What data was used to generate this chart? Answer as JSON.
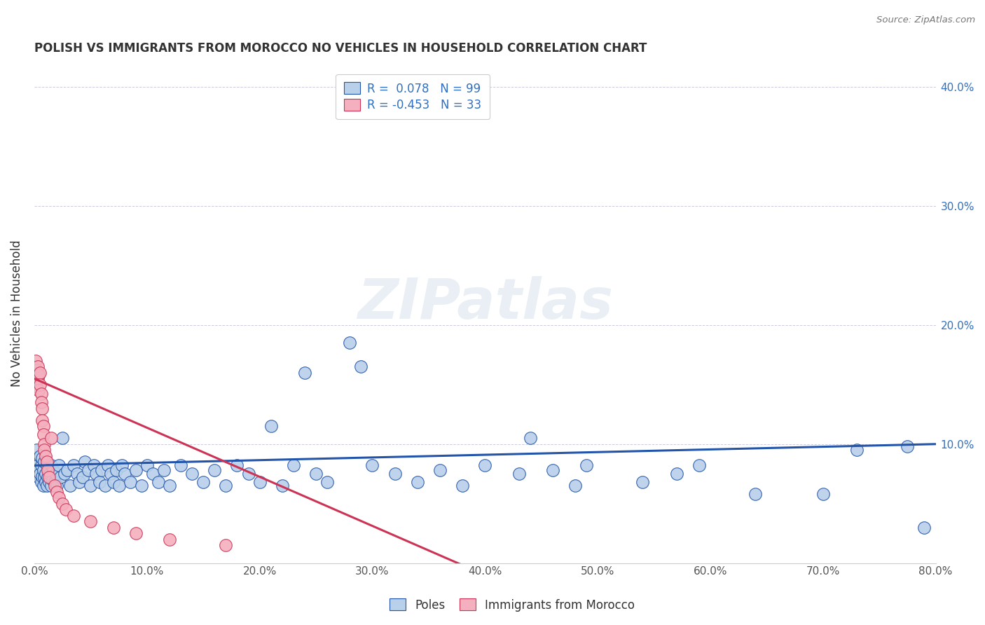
{
  "title": "POLISH VS IMMIGRANTS FROM MOROCCO NO VEHICLES IN HOUSEHOLD CORRELATION CHART",
  "source": "Source: ZipAtlas.com",
  "ylabel": "No Vehicles in Household",
  "legend_label1": "Poles",
  "legend_label2": "Immigrants from Morocco",
  "R1": 0.078,
  "N1": 99,
  "R2": -0.453,
  "N2": 33,
  "color_blue": "#b8d0ea",
  "color_pink": "#f5b0bf",
  "line_color_blue": "#2255aa",
  "line_color_pink": "#cc3355",
  "watermark": "ZIPatlas",
  "blue_dots": [
    [
      0.001,
      0.082
    ],
    [
      0.002,
      0.076
    ],
    [
      0.002,
      0.095
    ],
    [
      0.003,
      0.088
    ],
    [
      0.003,
      0.082
    ],
    [
      0.004,
      0.078
    ],
    [
      0.004,
      0.072
    ],
    [
      0.005,
      0.09
    ],
    [
      0.005,
      0.075
    ],
    [
      0.006,
      0.068
    ],
    [
      0.006,
      0.082
    ],
    [
      0.007,
      0.073
    ],
    [
      0.007,
      0.088
    ],
    [
      0.008,
      0.065
    ],
    [
      0.008,
      0.078
    ],
    [
      0.009,
      0.072
    ],
    [
      0.009,
      0.085
    ],
    [
      0.01,
      0.068
    ],
    [
      0.01,
      0.075
    ],
    [
      0.011,
      0.082
    ],
    [
      0.011,
      0.065
    ],
    [
      0.012,
      0.072
    ],
    [
      0.013,
      0.078
    ],
    [
      0.013,
      0.068
    ],
    [
      0.014,
      0.075
    ],
    [
      0.015,
      0.065
    ],
    [
      0.015,
      0.082
    ],
    [
      0.016,
      0.07
    ],
    [
      0.017,
      0.078
    ],
    [
      0.018,
      0.068
    ],
    [
      0.019,
      0.075
    ],
    [
      0.02,
      0.065
    ],
    [
      0.022,
      0.082
    ],
    [
      0.023,
      0.072
    ],
    [
      0.025,
      0.105
    ],
    [
      0.027,
      0.075
    ],
    [
      0.029,
      0.078
    ],
    [
      0.032,
      0.065
    ],
    [
      0.035,
      0.082
    ],
    [
      0.038,
      0.075
    ],
    [
      0.04,
      0.068
    ],
    [
      0.043,
      0.072
    ],
    [
      0.045,
      0.085
    ],
    [
      0.048,
      0.078
    ],
    [
      0.05,
      0.065
    ],
    [
      0.053,
      0.082
    ],
    [
      0.055,
      0.075
    ],
    [
      0.058,
      0.068
    ],
    [
      0.06,
      0.078
    ],
    [
      0.063,
      0.065
    ],
    [
      0.065,
      0.082
    ],
    [
      0.068,
      0.075
    ],
    [
      0.07,
      0.068
    ],
    [
      0.073,
      0.078
    ],
    [
      0.075,
      0.065
    ],
    [
      0.078,
      0.082
    ],
    [
      0.08,
      0.075
    ],
    [
      0.085,
      0.068
    ],
    [
      0.09,
      0.078
    ],
    [
      0.095,
      0.065
    ],
    [
      0.1,
      0.082
    ],
    [
      0.105,
      0.075
    ],
    [
      0.11,
      0.068
    ],
    [
      0.115,
      0.078
    ],
    [
      0.12,
      0.065
    ],
    [
      0.13,
      0.082
    ],
    [
      0.14,
      0.075
    ],
    [
      0.15,
      0.068
    ],
    [
      0.16,
      0.078
    ],
    [
      0.17,
      0.065
    ],
    [
      0.18,
      0.082
    ],
    [
      0.19,
      0.075
    ],
    [
      0.2,
      0.068
    ],
    [
      0.21,
      0.115
    ],
    [
      0.22,
      0.065
    ],
    [
      0.23,
      0.082
    ],
    [
      0.24,
      0.16
    ],
    [
      0.25,
      0.075
    ],
    [
      0.26,
      0.068
    ],
    [
      0.28,
      0.185
    ],
    [
      0.29,
      0.165
    ],
    [
      0.3,
      0.082
    ],
    [
      0.32,
      0.075
    ],
    [
      0.34,
      0.068
    ],
    [
      0.36,
      0.078
    ],
    [
      0.38,
      0.065
    ],
    [
      0.4,
      0.082
    ],
    [
      0.43,
      0.075
    ],
    [
      0.44,
      0.105
    ],
    [
      0.46,
      0.078
    ],
    [
      0.48,
      0.065
    ],
    [
      0.49,
      0.082
    ],
    [
      0.54,
      0.068
    ],
    [
      0.57,
      0.075
    ],
    [
      0.59,
      0.082
    ],
    [
      0.64,
      0.058
    ],
    [
      0.7,
      0.058
    ],
    [
      0.73,
      0.095
    ],
    [
      0.775,
      0.098
    ],
    [
      0.79,
      0.03
    ]
  ],
  "pink_dots": [
    [
      0.001,
      0.17
    ],
    [
      0.002,
      0.162
    ],
    [
      0.002,
      0.148
    ],
    [
      0.003,
      0.155
    ],
    [
      0.003,
      0.165
    ],
    [
      0.004,
      0.158
    ],
    [
      0.004,
      0.145
    ],
    [
      0.005,
      0.16
    ],
    [
      0.005,
      0.15
    ],
    [
      0.006,
      0.142
    ],
    [
      0.006,
      0.135
    ],
    [
      0.007,
      0.13
    ],
    [
      0.007,
      0.12
    ],
    [
      0.008,
      0.115
    ],
    [
      0.008,
      0.108
    ],
    [
      0.009,
      0.1
    ],
    [
      0.009,
      0.095
    ],
    [
      0.01,
      0.09
    ],
    [
      0.011,
      0.085
    ],
    [
      0.012,
      0.078
    ],
    [
      0.013,
      0.072
    ],
    [
      0.015,
      0.105
    ],
    [
      0.018,
      0.065
    ],
    [
      0.02,
      0.06
    ],
    [
      0.022,
      0.055
    ],
    [
      0.025,
      0.05
    ],
    [
      0.028,
      0.045
    ],
    [
      0.035,
      0.04
    ],
    [
      0.05,
      0.035
    ],
    [
      0.07,
      0.03
    ],
    [
      0.09,
      0.025
    ],
    [
      0.12,
      0.02
    ],
    [
      0.17,
      0.015
    ]
  ],
  "blue_trend": [
    0.0,
    0.8,
    0.082,
    0.1
  ],
  "pink_trend": [
    0.0,
    0.4,
    0.155,
    -0.01
  ],
  "xlim": [
    0.0,
    0.8
  ],
  "ylim": [
    0.0,
    0.42
  ],
  "xticks": [
    0.0,
    0.1,
    0.2,
    0.3,
    0.4,
    0.5,
    0.6,
    0.7,
    0.8
  ],
  "yticks": [
    0.0,
    0.1,
    0.2,
    0.3,
    0.4
  ],
  "xticklabels": [
    "0.0%",
    "10.0%",
    "20.0%",
    "30.0%",
    "40.0%",
    "50.0%",
    "60.0%",
    "70.0%",
    "80.0%"
  ],
  "right_yticklabels": [
    "",
    "10.0%",
    "20.0%",
    "30.0%",
    "40.0%"
  ]
}
